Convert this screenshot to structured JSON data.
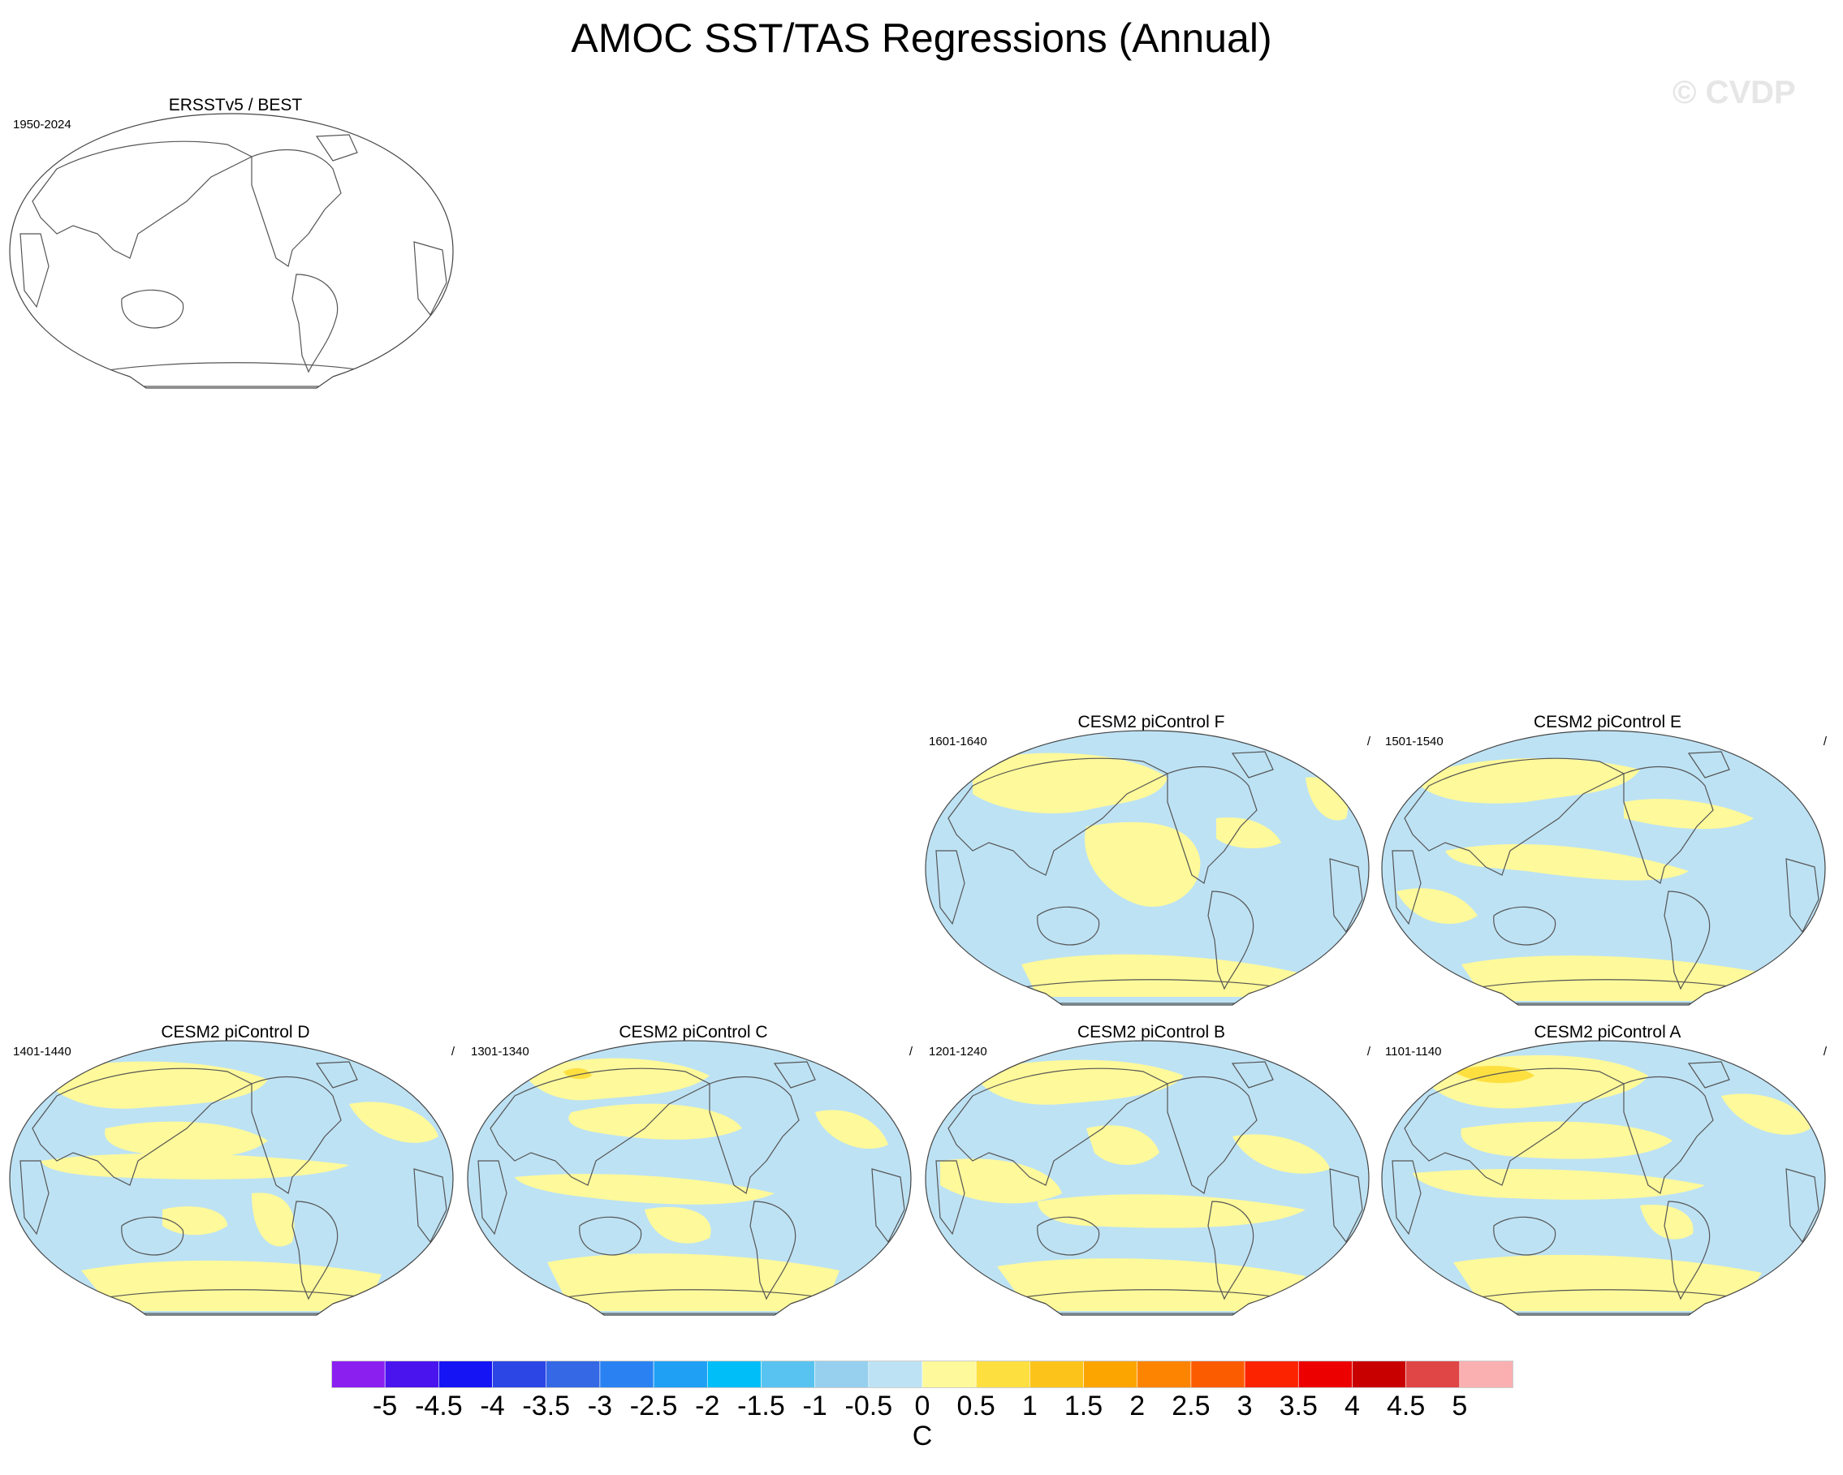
{
  "title": "AMOC SST/TAS Regressions (Annual)",
  "watermark": "© CVDP",
  "panels": [
    {
      "id": "obs",
      "title": "ERSSTv5 / BEST",
      "years": "1950-2024",
      "slash": "",
      "filled": false
    },
    {
      "id": "F",
      "title": "CESM2 piControl F",
      "years": "1601-1640",
      "slash": "/",
      "filled": true
    },
    {
      "id": "E",
      "title": "CESM2 piControl E",
      "years": "1501-1540",
      "slash": "/",
      "filled": true
    },
    {
      "id": "D",
      "title": "CESM2 piControl D",
      "years": "1401-1440",
      "slash": "/",
      "filled": true
    },
    {
      "id": "C",
      "title": "CESM2 piControl C",
      "years": "1301-1340",
      "slash": "/",
      "filled": true
    },
    {
      "id": "B",
      "title": "CESM2 piControl B",
      "years": "1201-1240",
      "slash": "/",
      "filled": true
    },
    {
      "id": "A",
      "title": "CESM2 piControl A",
      "years": "1101-1140",
      "slash": "/",
      "filled": true
    }
  ],
  "colorbar": {
    "unit": "C",
    "labels": [
      "-5",
      "-4.5",
      "-4",
      "-3.5",
      "-3",
      "-2.5",
      "-2",
      "-1.5",
      "-1",
      "-0.5",
      "0",
      "0.5",
      "1",
      "1.5",
      "2",
      "2.5",
      "3",
      "3.5",
      "4",
      "4.5",
      "5"
    ],
    "colors": [
      "#8a1ff0",
      "#4a14ee",
      "#1414f4",
      "#2c46e6",
      "#3568e4",
      "#2a82f2",
      "#1fa0f4",
      "#00bef8",
      "#58c3f0",
      "#96d0ee",
      "#bde2f4",
      "#fef99a",
      "#fde040",
      "#fcc41a",
      "#fca400",
      "#fc8400",
      "#fc5c00",
      "#fc2400",
      "#ec0000",
      "#c80000",
      "#e04646",
      "#fab0b0"
    ]
  },
  "map_colors": {
    "negative": "#bde2f4",
    "positive": "#fef99a",
    "strong_positive": "#fde040",
    "outline": "#555555"
  }
}
